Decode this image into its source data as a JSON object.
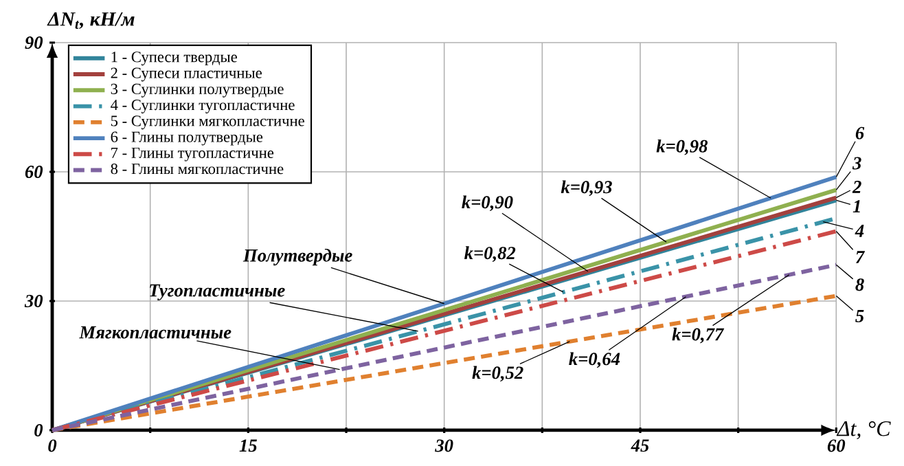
{
  "chart_data": {
    "type": "line",
    "xlabel": "Δt, °C",
    "ylabel": "ΔN$_{t}$, кН/м",
    "x": [
      0,
      60
    ],
    "xlim": [
      0,
      60
    ],
    "ylim": [
      0,
      90
    ],
    "xticks": [
      0,
      {
        "value": 7.5,
        "label": null
      },
      15,
      {
        "value": 22.5,
        "label": null
      },
      30,
      {
        "value": 37.5,
        "label": null
      },
      45,
      {
        "value": 52.5,
        "label": null
      },
      60
    ],
    "yticks": [
      0,
      30,
      60,
      90
    ],
    "grid": true,
    "legend": "top left",
    "series": [
      {
        "name": "1 - Супеси твердые",
        "color": "#31849b",
        "line_style": "solid",
        "values": [
          0,
          53.4
        ]
      },
      {
        "name": "2 - Супеси пластичные",
        "color": "#a3403d",
        "line_style": "solid",
        "values": [
          0,
          54
        ]
      },
      {
        "name": "3 - Суглинки полутвердые",
        "color": "#8fb04f",
        "line_style": "solid",
        "values": [
          0,
          55.8
        ]
      },
      {
        "name": "4 - Суглинки тугопластичне",
        "color": "#3a93a8",
        "line_style": "dashdot",
        "values": [
          0,
          49.2
        ]
      },
      {
        "name": "5 - Суглинки мягкопластичне",
        "color": "#e0802f",
        "line_style": "dashed",
        "values": [
          0,
          31.2
        ]
      },
      {
        "name": "6 - Глины полутвердые",
        "color": "#4f81bd",
        "line_style": "solid",
        "values": [
          0,
          58.8
        ]
      },
      {
        "name": "7 - Глины тугопластичне",
        "color": "#cd4a47",
        "line_style": "dashdot",
        "values": [
          0,
          46.2
        ]
      },
      {
        "name": "8 - Глины мягкопластичне",
        "color": "#7e63a0",
        "line_style": "dashed",
        "values": [
          0,
          38.4
        ]
      }
    ],
    "annotations": [
      {
        "text": "k=0,98",
        "x": 55,
        "y": 53.9
      },
      {
        "text": "k=0,93",
        "x": 47,
        "y": 43.7
      },
      {
        "text": "k=0,90",
        "x": 41,
        "y": 36.9
      },
      {
        "text": "k=0,82",
        "x": 39.1,
        "y": 32.1
      },
      {
        "text": "k=0,77",
        "x": 56.4,
        "y": 36.1
      },
      {
        "text": "k=0,64",
        "x": 48.5,
        "y": 31
      },
      {
        "text": "k=0,52",
        "x": 39.6,
        "y": 20.6
      },
      {
        "text": "Полутвердые",
        "x": 30,
        "y": 29.4
      },
      {
        "text": "Тугопластичные",
        "x": 28,
        "y": 23
      },
      {
        "text": "Мягкопластичные",
        "x": 22,
        "y": 14.1
      },
      {
        "text": "6",
        "x": 60,
        "y": 58.8
      },
      {
        "text": "3",
        "x": 60,
        "y": 55.8
      },
      {
        "text": "2",
        "x": 60,
        "y": 54
      },
      {
        "text": "1",
        "x": 60,
        "y": 53.4
      },
      {
        "text": "4",
        "x": 59,
        "y": 48.4
      },
      {
        "text": "7",
        "x": 60,
        "y": 46.2
      },
      {
        "text": "8",
        "x": 60,
        "y": 38.4
      },
      {
        "text": "5",
        "x": 60,
        "y": 31.2
      }
    ]
  }
}
